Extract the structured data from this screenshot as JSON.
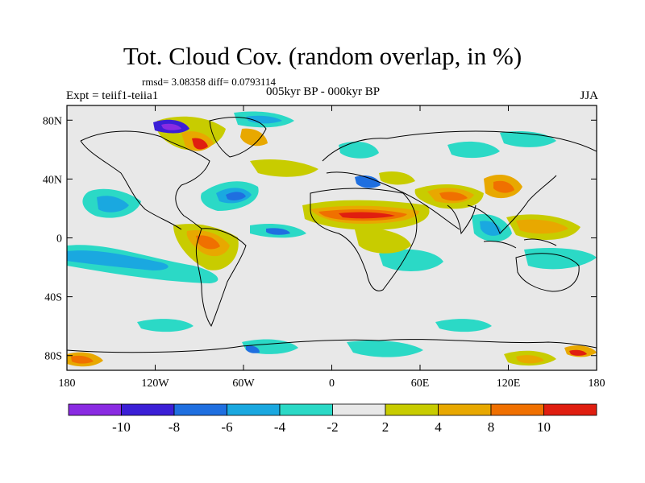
{
  "title": "Tot. Cloud Cov. (random overlap, in %)",
  "stats": "rmsd= 3.08358 diff= 0.0793114",
  "experiment": "Expt = teiif1-teiia1",
  "period": "005kyr BP - 000kyr BP",
  "season": "JJA",
  "axes": {
    "x_ticks": [
      "180",
      "120W",
      "60W",
      "0",
      "60E",
      "120E",
      "180"
    ],
    "y_ticks": [
      "80N",
      "40N",
      "0",
      "40S",
      "80S"
    ]
  },
  "colorbar": {
    "labels": [
      "-10",
      "-8",
      "-6",
      "-4",
      "-2",
      "2",
      "4",
      "8",
      "10"
    ],
    "colors": [
      "#8a2be2",
      "#3b1fd6",
      "#1f6fe0",
      "#1aa8e0",
      "#2bd9c6",
      "#e8e8e8",
      "#c8cc00",
      "#e8a800",
      "#f07000",
      "#e01e10"
    ]
  }
}
